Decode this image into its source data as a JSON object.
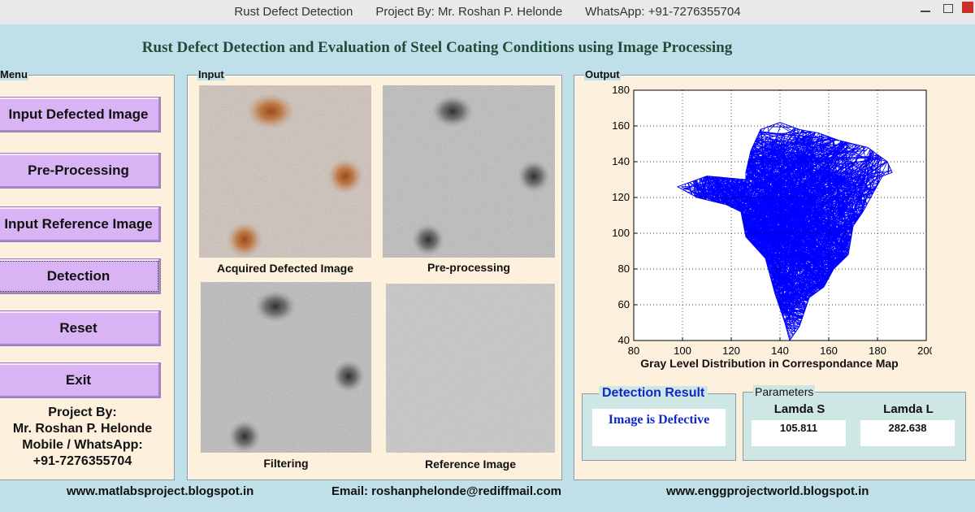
{
  "window": {
    "title_parts": [
      "Rust Defect Detection",
      "Project By: Mr. Roshan P. Helonde",
      "WhatsApp: +91-7276355704"
    ]
  },
  "app": {
    "heading": "Rust Defect Detection and Evaluation of Steel Coating Conditions using Image Processing"
  },
  "menu": {
    "label": "Menu",
    "buttons": [
      {
        "label": "Input Defected Image"
      },
      {
        "label": "Pre-Processing"
      },
      {
        "label": "Input Reference Image"
      },
      {
        "label": "Detection"
      },
      {
        "label": "Reset"
      },
      {
        "label": "Exit"
      }
    ],
    "credits": [
      "Project By:",
      "Mr. Roshan P. Helonde",
      "Mobile / WhatsApp:",
      "+91-7276355704"
    ]
  },
  "input": {
    "label": "Input",
    "images": [
      {
        "caption": "Acquired Defected Image"
      },
      {
        "caption": "Pre-processing"
      },
      {
        "caption": "Filtering"
      },
      {
        "caption": "Reference Image"
      }
    ]
  },
  "output": {
    "label": "Output",
    "chart_data": {
      "type": "line",
      "title": "",
      "xlabel": "Gray Level Distribution in Correspondance Map",
      "ylabel": "",
      "xlim": [
        80,
        200
      ],
      "ylim": [
        40,
        180
      ],
      "xticks": [
        80,
        100,
        120,
        140,
        160,
        180,
        200
      ],
      "yticks": [
        40,
        60,
        80,
        100,
        120,
        140,
        160,
        180
      ],
      "grid": true,
      "series_color": "#0000ff",
      "region_outline": [
        [
          126,
          130
        ],
        [
          110,
          132
        ],
        [
          98,
          126
        ],
        [
          106,
          120
        ],
        [
          118,
          116
        ],
        [
          124,
          112
        ],
        [
          126,
          98
        ],
        [
          134,
          86
        ],
        [
          138,
          66
        ],
        [
          142,
          50
        ],
        [
          144,
          40
        ],
        [
          148,
          48
        ],
        [
          152,
          64
        ],
        [
          158,
          70
        ],
        [
          162,
          80
        ],
        [
          168,
          88
        ],
        [
          170,
          104
        ],
        [
          174,
          112
        ],
        [
          178,
          122
        ],
        [
          182,
          132
        ],
        [
          186,
          134
        ],
        [
          184,
          140
        ],
        [
          176,
          148
        ],
        [
          164,
          152
        ],
        [
          156,
          156
        ],
        [
          148,
          158
        ],
        [
          140,
          162
        ],
        [
          132,
          158
        ],
        [
          128,
          146
        ],
        [
          126,
          134
        ]
      ]
    }
  },
  "detection": {
    "title": "Detection Result",
    "result": "Image is Defective"
  },
  "parameters": {
    "title": "Parameters",
    "items": [
      {
        "label": "Lamda S",
        "value": "105.811"
      },
      {
        "label": "Lamda L",
        "value": "282.638"
      }
    ]
  },
  "footer": {
    "left": "www.matlabsproject.blogspot.in",
    "center": "Email:  roshanphelonde@rediffmail.com",
    "right": "www.enggprojectworld.blogspot.in"
  },
  "colors": {
    "window_bg": "#bfe0e8",
    "panel_bg": "#fdf0dc",
    "button_bg": "#d8b4f5",
    "result_text": "#1028c8"
  }
}
